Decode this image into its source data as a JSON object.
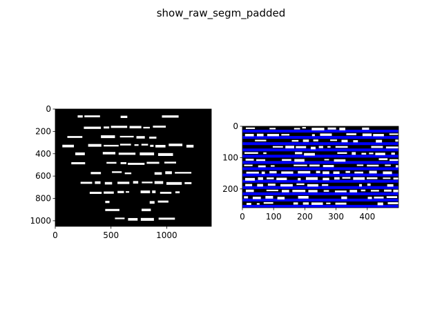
{
  "title": "show_raw_segm_padded",
  "chart_data": [
    {
      "type": "image",
      "description": "binary handwritten manuscript fragment, white text on black background",
      "xlim": [
        0,
        1400
      ],
      "ylim": [
        1050,
        0
      ],
      "x_ticks": [
        0,
        500,
        1000
      ],
      "y_ticks": [
        0,
        200,
        400,
        600,
        800,
        1000
      ],
      "background_color": "#000000",
      "ink_color": "#ffffff"
    },
    {
      "type": "image",
      "description": "padded segmented text lines with alternating blue line masks",
      "xlim": [
        0,
        500
      ],
      "ylim": [
        260,
        0
      ],
      "x_ticks": [
        0,
        100,
        200,
        300,
        400
      ],
      "y_ticks": [
        0,
        100,
        200
      ],
      "stripe_color": "#0000ff",
      "gap_color": "#000000",
      "ink_color": "#ffffff",
      "stripe_period": 20
    }
  ]
}
